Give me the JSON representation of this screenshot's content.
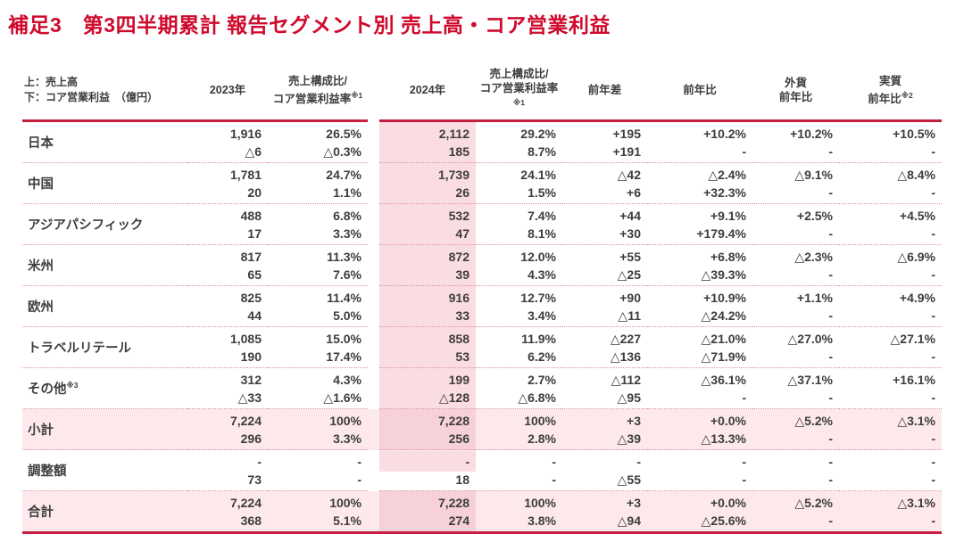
{
  "title": "補足3　第3四半期累計 報告セグメント別 売上高・コア営業利益",
  "colors": {
    "accent_red": "#cf0a2c",
    "rule_red": "#c41f3e",
    "band_pink": "#fadde2",
    "row_highlight_pink": "#fde9ec",
    "band_on_highlight": "#f6d1d8",
    "dotted_separator": "#dd8fa0",
    "text": "#3d3d3d"
  },
  "table": {
    "legend": {
      "line1": "上：売上高",
      "line2": "下：コア営業利益　（億円）"
    },
    "header": {
      "y2023": "2023年",
      "ratio_line1": "売上構成比/",
      "ratio_line2": "コア営業利益率",
      "ratio_sup": "※1",
      "y2024": "2024年",
      "diff": "前年差",
      "yoy": "前年比",
      "fx_line1": "外貨",
      "fx_line2": "前年比",
      "real_line1": "実質",
      "real_line2": "前年比",
      "real_sup": "※2"
    },
    "rows": [
      {
        "label": "日本",
        "sup": "",
        "highlight": false,
        "band": "full",
        "cells": [
          [
            "1,916",
            "△6"
          ],
          [
            "26.5%",
            "△0.3%"
          ],
          [
            "2,112",
            "185"
          ],
          [
            "29.2%",
            "8.7%"
          ],
          [
            "+195",
            "+191"
          ],
          [
            "+10.2%",
            "-"
          ],
          [
            "+10.2%",
            "-"
          ],
          [
            "+10.5%",
            "-"
          ]
        ]
      },
      {
        "label": "中国",
        "sup": "",
        "highlight": false,
        "band": "full",
        "cells": [
          [
            "1,781",
            "20"
          ],
          [
            "24.7%",
            "1.1%"
          ],
          [
            "1,739",
            "26"
          ],
          [
            "24.1%",
            "1.5%"
          ],
          [
            "△42",
            "+6"
          ],
          [
            "△2.4%",
            "+32.3%"
          ],
          [
            "△9.1%",
            "-"
          ],
          [
            "△8.4%",
            "-"
          ]
        ]
      },
      {
        "label": "アジアパシフィック",
        "sup": "",
        "highlight": false,
        "band": "full",
        "cells": [
          [
            "488",
            "17"
          ],
          [
            "6.8%",
            "3.3%"
          ],
          [
            "532",
            "47"
          ],
          [
            "7.4%",
            "8.1%"
          ],
          [
            "+44",
            "+30"
          ],
          [
            "+9.1%",
            "+179.4%"
          ],
          [
            "+2.5%",
            "-"
          ],
          [
            "+4.5%",
            "-"
          ]
        ]
      },
      {
        "label": "米州",
        "sup": "",
        "highlight": false,
        "band": "full",
        "cells": [
          [
            "817",
            "65"
          ],
          [
            "11.3%",
            "7.6%"
          ],
          [
            "872",
            "39"
          ],
          [
            "12.0%",
            "4.3%"
          ],
          [
            "+55",
            "△25"
          ],
          [
            "+6.8%",
            "△39.3%"
          ],
          [
            "△2.3%",
            "-"
          ],
          [
            "△6.9%",
            "-"
          ]
        ]
      },
      {
        "label": "欧州",
        "sup": "",
        "highlight": false,
        "band": "full",
        "cells": [
          [
            "825",
            "44"
          ],
          [
            "11.4%",
            "5.0%"
          ],
          [
            "916",
            "33"
          ],
          [
            "12.7%",
            "3.4%"
          ],
          [
            "+90",
            "△11"
          ],
          [
            "+10.9%",
            "△24.2%"
          ],
          [
            "+1.1%",
            "-"
          ],
          [
            "+4.9%",
            "-"
          ]
        ]
      },
      {
        "label": "トラベルリテール",
        "sup": "",
        "highlight": false,
        "band": "full",
        "cells": [
          [
            "1,085",
            "190"
          ],
          [
            "15.0%",
            "17.4%"
          ],
          [
            "858",
            "53"
          ],
          [
            "11.9%",
            "6.2%"
          ],
          [
            "△227",
            "△136"
          ],
          [
            "△21.0%",
            "△71.9%"
          ],
          [
            "△27.0%",
            "-"
          ],
          [
            "△27.1%",
            "-"
          ]
        ]
      },
      {
        "label": "その他",
        "sup": "※3",
        "highlight": false,
        "band": "full",
        "cells": [
          [
            "312",
            "△33"
          ],
          [
            "4.3%",
            "△1.6%"
          ],
          [
            "199",
            "△128"
          ],
          [
            "2.7%",
            "△6.8%"
          ],
          [
            "△112",
            "△95"
          ],
          [
            "△36.1%",
            "-"
          ],
          [
            "△37.1%",
            "-"
          ],
          [
            "+16.1%",
            "-"
          ]
        ]
      },
      {
        "label": "小計",
        "sup": "",
        "highlight": true,
        "band": "full",
        "cells": [
          [
            "7,224",
            "296"
          ],
          [
            "100%",
            "3.3%"
          ],
          [
            "7,228",
            "256"
          ],
          [
            "100%",
            "2.8%"
          ],
          [
            "+3",
            "△39"
          ],
          [
            "+0.0%",
            "△13.3%"
          ],
          [
            "△5.2%",
            "-"
          ],
          [
            "△3.1%",
            "-"
          ]
        ]
      },
      {
        "label": "調整額",
        "sup": "",
        "highlight": false,
        "band": "split",
        "cells": [
          [
            "-",
            "73"
          ],
          [
            "-",
            "-"
          ],
          [
            "-",
            "18"
          ],
          [
            "-",
            "-"
          ],
          [
            "-",
            "△55"
          ],
          [
            "-",
            "-"
          ],
          [
            "-",
            "-"
          ],
          [
            "-",
            "-"
          ]
        ]
      },
      {
        "label": "合計",
        "sup": "",
        "highlight": true,
        "band": "full",
        "cells": [
          [
            "7,224",
            "368"
          ],
          [
            "100%",
            "5.1%"
          ],
          [
            "7,228",
            "274"
          ],
          [
            "100%",
            "3.8%"
          ],
          [
            "+3",
            "△94"
          ],
          [
            "+0.0%",
            "△25.6%"
          ],
          [
            "△5.2%",
            "-"
          ],
          [
            "△3.1%",
            "-"
          ]
        ]
      }
    ]
  }
}
